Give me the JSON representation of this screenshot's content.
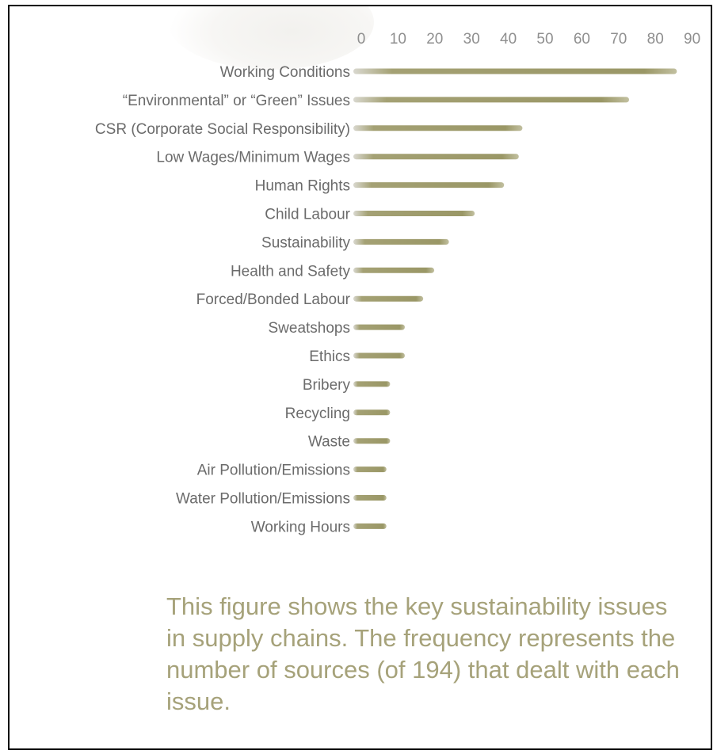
{
  "chart_data": {
    "type": "bar",
    "orientation": "horizontal",
    "title": "",
    "xlabel": "",
    "ylabel": "",
    "xlim": [
      0,
      90
    ],
    "xticks": [
      0,
      10,
      20,
      30,
      40,
      50,
      60,
      70,
      80,
      90
    ],
    "axis_position": "top",
    "grid": false,
    "categories": [
      "Working Conditions",
      "“Environmental” or “Green” Issues",
      "CSR (Corporate Social Responsibility)",
      "Low Wages/Minimum Wages",
      "Human Rights",
      "Child Labour",
      "Sustainability",
      "Health and Safety",
      "Forced/Bonded Labour",
      "Sweatshops",
      "Ethics",
      "Bribery",
      "Recycling",
      "Waste",
      "Air Pollution/Emissions",
      "Water Pollution/Emissions",
      "Working Hours"
    ],
    "values": [
      88,
      75,
      46,
      45,
      41,
      33,
      26,
      22,
      19,
      14,
      14,
      10,
      10,
      10,
      9,
      9,
      9
    ],
    "bar_color": "#a09d6c"
  },
  "caption": "This figure shows the key sustainability issues in supply chains. The frequency represents the number of sources (of 194) that dealt with each issue."
}
